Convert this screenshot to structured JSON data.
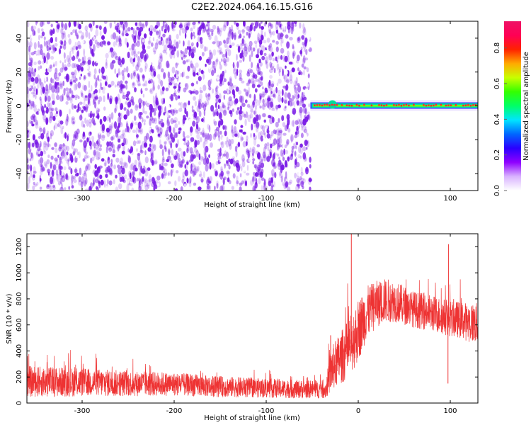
{
  "title": "C2E2.2024.064.16.15.G16",
  "colors": {
    "spectrogram_noise": "#7a1be6",
    "signal_core": "#ff2a2a",
    "snr_line": "#ee3333",
    "colorbar_stops": [
      "#ffffff",
      "#d9b3ff",
      "#8f00ff",
      "#2a00ff",
      "#0066ff",
      "#00e5ff",
      "#00ff66",
      "#33ff00",
      "#c8ff00",
      "#ffaa00",
      "#ff2200",
      "#ff0055",
      "#ee1166"
    ]
  },
  "chart_data": [
    {
      "type": "heatmap",
      "xlabel": "Height of straight line (km)",
      "ylabel": "Frequency (Hz)",
      "xlim": [
        -360,
        130
      ],
      "ylim": [
        -50,
        50
      ],
      "x_ticks": [
        -300,
        -200,
        -100,
        0,
        100
      ],
      "y_ticks": [
        -40,
        -20,
        0,
        20,
        40
      ],
      "noise_region_x": [
        -360,
        -52
      ],
      "signal_x": [
        -52,
        130
      ],
      "signal_frequency_hz": 0,
      "colorbar": {
        "label": "Normalized spectral amplitude",
        "range": [
          0,
          0.95
        ],
        "ticks": [
          0.0,
          0.2,
          0.4,
          0.6,
          0.8
        ]
      }
    },
    {
      "type": "line",
      "xlabel": "Height of straight line (km)",
      "ylabel": "SNR (10 * v/v)",
      "xlim": [
        -360,
        130
      ],
      "ylim": [
        0,
        1300
      ],
      "x_ticks": [
        -300,
        -200,
        -100,
        0,
        100
      ],
      "y_ticks": [
        0,
        200,
        400,
        600,
        800,
        1000,
        1200
      ],
      "profile": {
        "x": [
          -360,
          -300,
          -250,
          -200,
          -150,
          -100,
          -60,
          -35,
          -30,
          -20,
          -10,
          0,
          10,
          20,
          30,
          40,
          60,
          80,
          100,
          110,
          120,
          130
        ],
        "baseline": [
          165,
          160,
          150,
          145,
          125,
          115,
          105,
          105,
          250,
          340,
          420,
          560,
          700,
          760,
          790,
          780,
          720,
          690,
          650,
          640,
          620,
          610
        ],
        "spread": [
          120,
          110,
          100,
          90,
          80,
          75,
          70,
          70,
          170,
          200,
          230,
          240,
          200,
          180,
          170,
          160,
          140,
          140,
          140,
          140,
          150,
          160
        ]
      },
      "spikes": [
        {
          "x": -7.5,
          "y": 1300
        },
        {
          "x": 98,
          "y": 1220
        },
        {
          "x": 97.5,
          "y": 150
        },
        {
          "x": -30,
          "y": 520
        }
      ]
    }
  ]
}
